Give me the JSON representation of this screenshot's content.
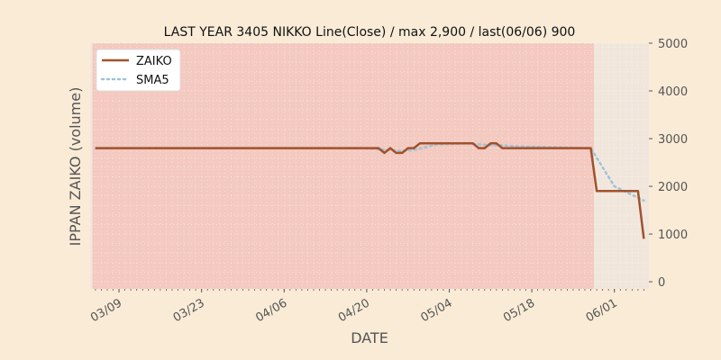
{
  "chart_data": {
    "type": "line",
    "title": "LAST YEAR 3405 NIKKO Line(Close) / max 2,900 / last(06/06) 900",
    "xlabel": "DATE",
    "ylabel": "IPPAN ZAIKO (volume)",
    "x_tick_labels": [
      "03/09",
      "03/23",
      "04/06",
      "04/20",
      "05/04",
      "05/18",
      "06/01"
    ],
    "y_tick_labels": [
      "0",
      "1000",
      "2000",
      "3000",
      "4000",
      "5000"
    ],
    "y_ticks": [
      0,
      1000,
      2000,
      3000,
      4000,
      5000
    ],
    "ylim": [
      -150,
      5000
    ],
    "grid": true,
    "legend_position": "top-left",
    "shaded_until": "05/28",
    "colors": {
      "ZAIKO": "#a0522d",
      "SMA5": "#9ec3d6",
      "shaded": "#f3c9c0",
      "unshaded": "#f1e6dc"
    },
    "series": [
      {
        "name": "ZAIKO",
        "x": [
          "03/05",
          "03/22",
          "03/29",
          "04/19",
          "04/22",
          "04/23",
          "04/24",
          "04/25",
          "04/26",
          "04/27",
          "04/28",
          "04/29",
          "04/30",
          "05/01",
          "05/08",
          "05/09",
          "05/10",
          "05/11",
          "05/12",
          "05/13",
          "05/28",
          "05/29",
          "06/05",
          "06/06"
        ],
        "y": [
          2800,
          2800,
          2800,
          2800,
          2800,
          2700,
          2800,
          2700,
          2700,
          2800,
          2800,
          2900,
          2900,
          2900,
          2900,
          2800,
          2800,
          2900,
          2900,
          2800,
          2800,
          1900,
          1900,
          900
        ]
      },
      {
        "name": "SMA5",
        "x": [
          "03/05",
          "04/19",
          "04/22",
          "04/24",
          "04/26",
          "04/28",
          "04/30",
          "05/02",
          "05/07",
          "05/09",
          "05/11",
          "05/13",
          "05/15",
          "05/28",
          "06/01",
          "06/06"
        ],
        "y": [
          2800,
          2800,
          2780,
          2760,
          2740,
          2760,
          2820,
          2880,
          2900,
          2880,
          2860,
          2860,
          2840,
          2800,
          2000,
          1700
        ]
      }
    ]
  }
}
